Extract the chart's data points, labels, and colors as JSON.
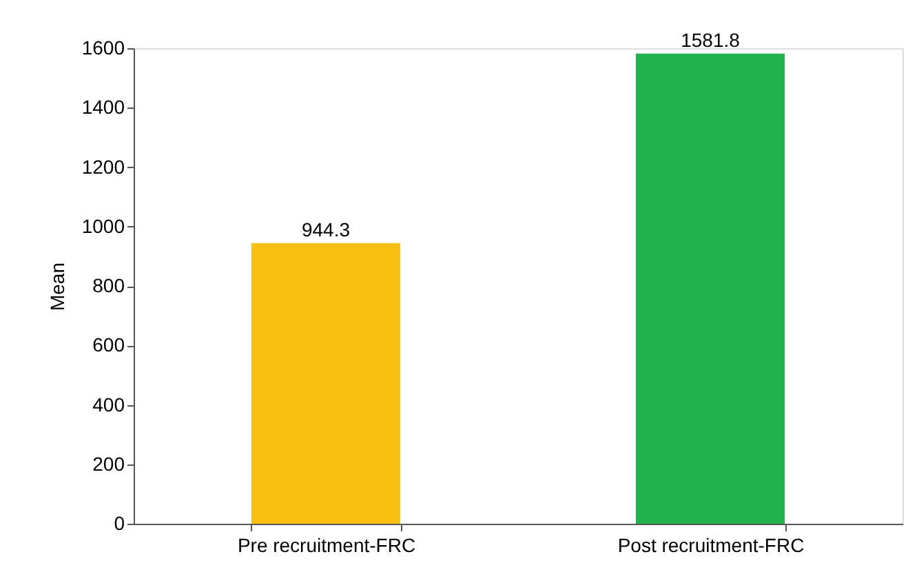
{
  "chart_data": {
    "type": "bar",
    "ylabel": "Mean",
    "categories": [
      "Pre recruitment-FRC",
      "Post recruitment-FRC"
    ],
    "values": [
      944.3,
      1581.8
    ],
    "colors": [
      "#fbbf12",
      "#22b24c"
    ],
    "ylim": [
      0,
      1600
    ],
    "yticks": [
      0,
      200,
      400,
      600,
      800,
      1000,
      1200,
      1400,
      1600
    ],
    "grid": false,
    "data_labels": true
  }
}
